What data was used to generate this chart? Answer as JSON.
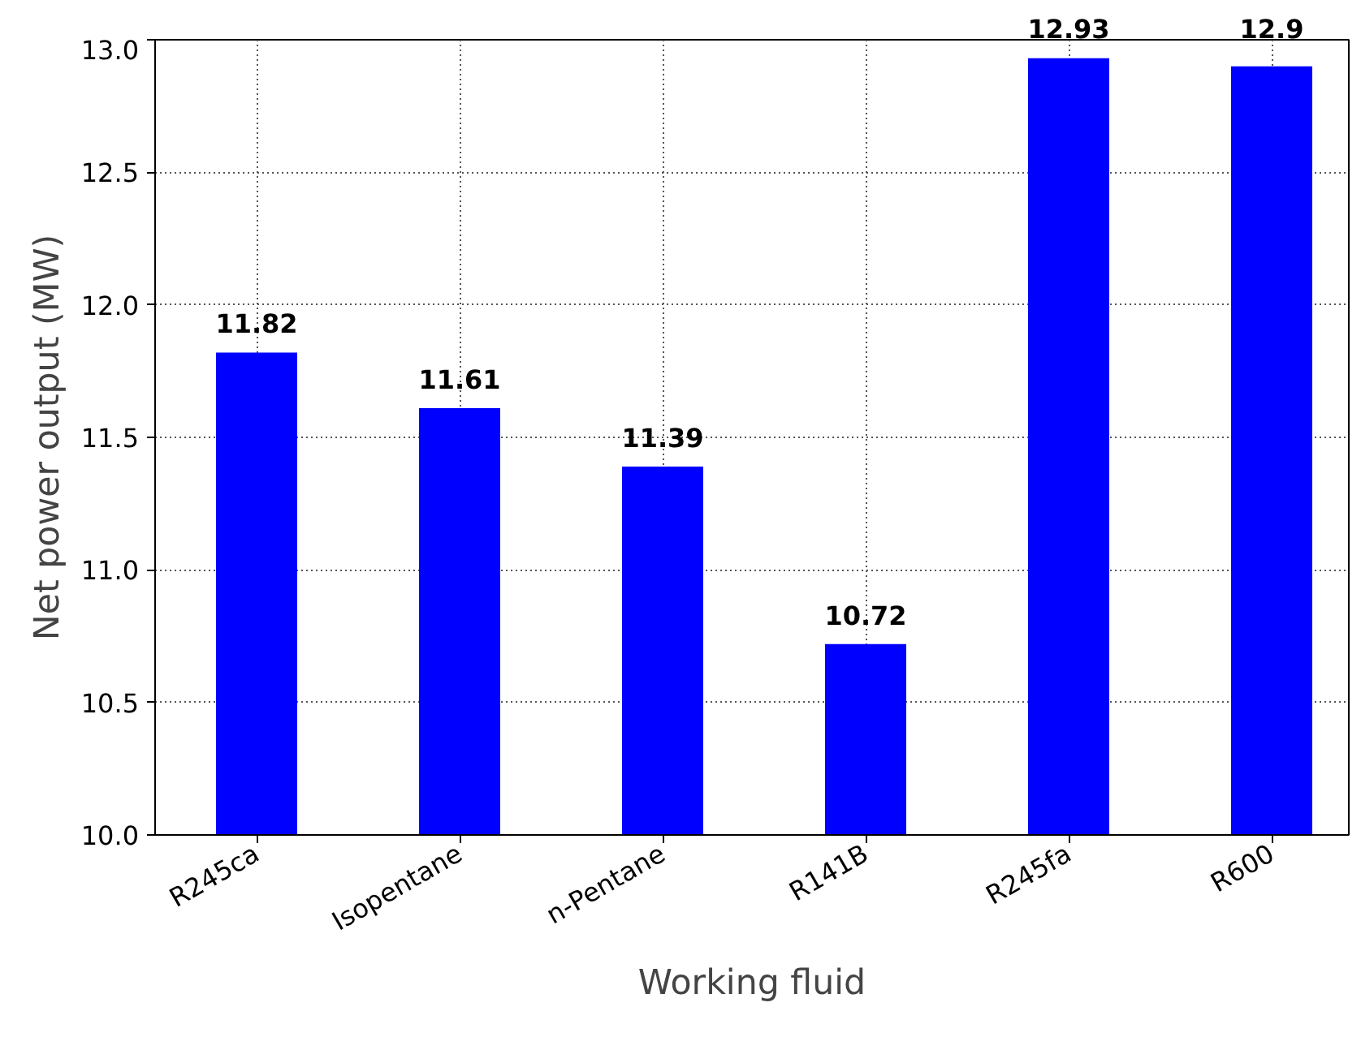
{
  "chart_data": {
    "type": "bar",
    "xlabel": "Working fluid",
    "ylabel": "Net power output (MW)",
    "categories": [
      "R245ca",
      "Isopentane",
      "n-Pentane",
      "R141B",
      "R245fa",
      "R600"
    ],
    "values": [
      11.82,
      11.61,
      11.39,
      10.72,
      12.93,
      12.9
    ],
    "color": "#0000ff",
    "ylim": [
      10,
      13
    ],
    "yticks": [
      {
        "value": 10,
        "label": "10.0"
      },
      {
        "value": 10.5,
        "label": "10.5"
      },
      {
        "value": 11,
        "label": "11.0"
      },
      {
        "value": 11.5,
        "label": "11.5"
      },
      {
        "value": 12,
        "label": "12.0"
      },
      {
        "value": 12.5,
        "label": "12.5"
      },
      {
        "value": 13,
        "label": "13.0"
      }
    ],
    "grid": true,
    "data_labels": true
  }
}
